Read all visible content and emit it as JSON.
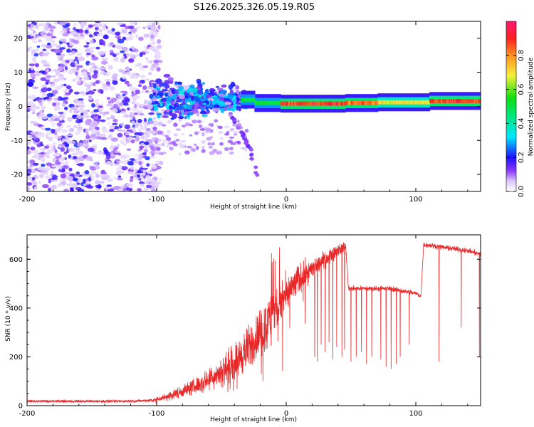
{
  "title": "S126.2025.326.05.19.R05",
  "chart_data": [
    {
      "type": "heatmap",
      "name": "spectrogram",
      "xlabel": "Height of straight line (km)",
      "ylabel": "Frequency (Hz)",
      "xlim": [
        -200,
        150
      ],
      "ylim": [
        -25,
        25
      ],
      "xticks": [
        "-200",
        "-100",
        "0",
        "100"
      ],
      "xtick_values": [
        -200,
        -100,
        0,
        100
      ],
      "yticks": [
        "-20",
        "-10",
        "0",
        "10",
        "20"
      ],
      "ytick_values": [
        -20,
        -10,
        0,
        10,
        20
      ],
      "colorbar": {
        "label": "Normalized spectral amplitude",
        "range": [
          0,
          1
        ],
        "ticks": [
          "0.0",
          "0.2",
          "0.4",
          "0.6",
          "0.8"
        ],
        "tick_values": [
          0.0,
          0.2,
          0.4,
          0.6,
          0.8
        ]
      },
      "noise_region": [
        -200,
        -105
      ],
      "carrier_start": -35,
      "scatter_region": [
        -105,
        -30
      ],
      "drift_tail": {
        "x": [
          -45,
          -35,
          -28,
          -22
        ],
        "y": [
          -1,
          -7,
          -13,
          -21
        ]
      },
      "carrier_segments": [
        {
          "x0": -35,
          "x1": -25,
          "freq": 2.0,
          "amp": 0.55
        },
        {
          "x0": -25,
          "x1": -5,
          "freq": 1.0,
          "amp": 0.55
        },
        {
          "x0": -5,
          "x1": 45,
          "freq": 0.8,
          "amp": 0.95
        },
        {
          "x0": 45,
          "x1": 70,
          "freq": 1.0,
          "amp": 0.9
        },
        {
          "x0": 70,
          "x1": 110,
          "freq": 1.2,
          "amp": 0.75
        },
        {
          "x0": 110,
          "x1": 150,
          "freq": 1.6,
          "amp": 0.95
        }
      ]
    },
    {
      "type": "line",
      "name": "snr",
      "xlabel": "Height of straight line (km)",
      "ylabel": "SNR (10 * v/v)",
      "xlim": [
        -200,
        150
      ],
      "ylim": [
        0,
        700
      ],
      "xticks": [
        "-200",
        "-100",
        "0",
        "100"
      ],
      "xtick_values": [
        -200,
        -100,
        0,
        100
      ],
      "yticks": [
        "0",
        "200",
        "400",
        "600"
      ],
      "ytick_values": [
        0,
        200,
        400,
        600
      ],
      "series": [
        {
          "name": "SNR",
          "color": "#e8292a",
          "baseline_x": [
            -200,
            -130,
            -110,
            -100,
            -90,
            -80,
            -70,
            -60,
            -50,
            -40,
            -30,
            -20,
            -10,
            0,
            10,
            20,
            30,
            40,
            46,
            48,
            60,
            80,
            100,
            104,
            106,
            120,
            140,
            150
          ],
          "baseline_y": [
            18,
            18,
            20,
            25,
            40,
            60,
            80,
            110,
            140,
            180,
            230,
            300,
            380,
            450,
            520,
            560,
            600,
            640,
            650,
            480,
            480,
            480,
            460,
            450,
            660,
            650,
            635,
            620
          ],
          "noise_amp_x": [
            -200,
            -110,
            -100,
            -60,
            -30,
            -10,
            0,
            20,
            46,
            48,
            100,
            106,
            150
          ],
          "noise_amp_y": [
            8,
            8,
            15,
            60,
            130,
            160,
            120,
            60,
            30,
            15,
            15,
            15,
            15
          ],
          "dropouts": [
            {
              "x": 22,
              "y": 200
            },
            {
              "x": 24,
              "y": 180
            },
            {
              "x": 27,
              "y": 250
            },
            {
              "x": 30,
              "y": 220
            },
            {
              "x": 33,
              "y": 260
            },
            {
              "x": 36,
              "y": 190
            },
            {
              "x": 39,
              "y": 240
            },
            {
              "x": 43,
              "y": 200
            },
            {
              "x": 45,
              "y": 230
            },
            {
              "x": 50,
              "y": 180
            },
            {
              "x": 54,
              "y": 200
            },
            {
              "x": 58,
              "y": 220
            },
            {
              "x": 62,
              "y": 170
            },
            {
              "x": 66,
              "y": 200
            },
            {
              "x": 73,
              "y": 190
            },
            {
              "x": 77,
              "y": 160
            },
            {
              "x": 81,
              "y": 150
            },
            {
              "x": 85,
              "y": 170
            },
            {
              "x": 88,
              "y": 200
            },
            {
              "x": 95,
              "y": 250
            },
            {
              "x": 118,
              "y": 180
            },
            {
              "x": 135,
              "y": 320
            },
            {
              "x": 149,
              "y": 200
            }
          ]
        }
      ]
    }
  ]
}
